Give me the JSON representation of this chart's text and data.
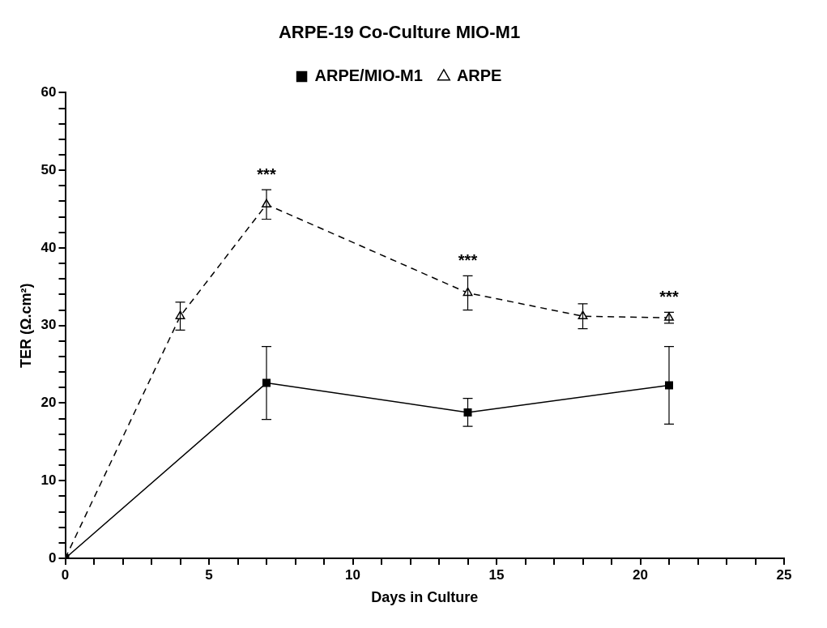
{
  "chart_data": {
    "type": "line",
    "title": "ARPE-19 Co-Culture MIO-M1",
    "xlabel": "Days in Culture",
    "ylabel": "TER (Ω.cm²)",
    "xlim": [
      0,
      25
    ],
    "xticks": [
      0,
      {
        "value": 1,
        "label": null
      },
      {
        "value": 2,
        "label": null
      },
      {
        "value": 3,
        "label": null
      },
      {
        "value": 4,
        "label": null
      },
      5,
      {
        "value": 6,
        "label": null
      },
      {
        "value": 7,
        "label": null
      },
      {
        "value": 8,
        "label": null
      },
      {
        "value": 9,
        "label": null
      },
      10,
      {
        "value": 11,
        "label": null
      },
      {
        "value": 12,
        "label": null
      },
      {
        "value": 13,
        "label": null
      },
      {
        "value": 14,
        "label": null
      },
      15,
      {
        "value": 16,
        "label": null
      },
      {
        "value": 17,
        "label": null
      },
      {
        "value": 18,
        "label": null
      },
      {
        "value": 19,
        "label": null
      },
      20,
      {
        "value": 21,
        "label": null
      },
      {
        "value": 22,
        "label": null
      },
      {
        "value": 23,
        "label": null
      },
      {
        "value": 24,
        "label": null
      },
      25
    ],
    "ylim": [
      0,
      60
    ],
    "yticks": [
      0,
      {
        "value": 2,
        "label": null
      },
      {
        "value": 4,
        "label": null
      },
      {
        "value": 6,
        "label": null
      },
      {
        "value": 8,
        "label": null
      },
      10,
      {
        "value": 12,
        "label": null
      },
      {
        "value": 14,
        "label": null
      },
      {
        "value": 16,
        "label": null
      },
      {
        "value": 18,
        "label": null
      },
      20,
      {
        "value": 22,
        "label": null
      },
      {
        "value": 24,
        "label": null
      },
      {
        "value": 26,
        "label": null
      },
      {
        "value": 28,
        "label": null
      },
      30,
      {
        "value": 32,
        "label": null
      },
      {
        "value": 34,
        "label": null
      },
      {
        "value": 36,
        "label": null
      },
      {
        "value": 38,
        "label": null
      },
      40,
      {
        "value": 42,
        "label": null
      },
      {
        "value": 44,
        "label": null
      },
      {
        "value": 46,
        "label": null
      },
      {
        "value": 48,
        "label": null
      },
      50,
      {
        "value": 52,
        "label": null
      },
      {
        "value": 54,
        "label": null
      },
      {
        "value": 56,
        "label": null
      },
      {
        "value": 58,
        "label": null
      },
      60
    ],
    "grid": false,
    "legend": "top",
    "series": [
      {
        "name": "ARPE/MIO-M1",
        "color": "#000000",
        "x": [
          0,
          7,
          14,
          21
        ],
        "values": [
          0,
          22.6,
          18.8,
          22.3
        ],
        "errors": [
          null,
          4.7,
          1.8,
          5
        ],
        "marker": "square",
        "line_style": "solid"
      },
      {
        "name": "ARPE",
        "color": "#000000",
        "x": [
          0,
          4,
          7,
          14,
          18,
          21
        ],
        "values": [
          0,
          31.2,
          45.6,
          34.2,
          31.2,
          31
        ],
        "errors": [
          null,
          1.8,
          1.9,
          2.2,
          1.6,
          0.7
        ],
        "marker": "triangle",
        "line_style": "dashed"
      }
    ],
    "annotations": [
      {
        "text": "***",
        "x": 7,
        "y": 47.5
      },
      {
        "text": "***",
        "x": 14,
        "y": 36.4
      },
      {
        "text": "***",
        "x": 21,
        "y": 31.7
      }
    ]
  }
}
